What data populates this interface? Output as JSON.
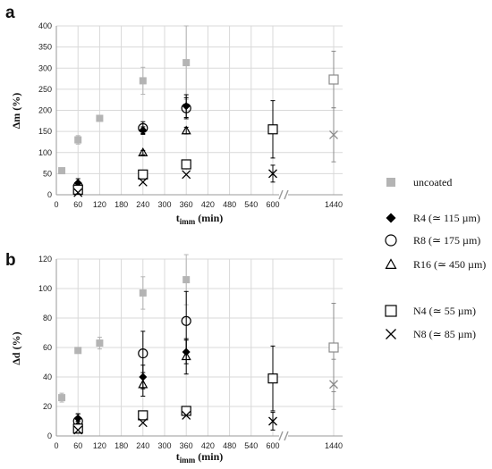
{
  "series_styles": {
    "uncoated": {
      "marker": "square-filled",
      "color": "#b4b4b4"
    },
    "R4": {
      "marker": "diamond-filled",
      "color": "#000000"
    },
    "R8": {
      "marker": "circle-open",
      "color": "#000000"
    },
    "R16": {
      "marker": "triangle-open",
      "color": "#000000"
    },
    "N4": {
      "marker": "square-open",
      "color": "#000000"
    },
    "N8": {
      "marker": "x",
      "color": "#000000"
    },
    "uncoated_1440": {
      "marker": "square-open",
      "color": "#8c8c8c"
    },
    "N8_1440": {
      "marker": "x",
      "color": "#8c8c8c"
    }
  },
  "legend": {
    "uncoated": "uncoated",
    "R4": "R4 (≃ 115 µm)",
    "R8": "R8 (≃ 175 µm)",
    "R16": "R16 (≃ 450 µm)",
    "N4": "N4 (≃ 55 µm)",
    "N8": "N8 (≃ 85 µm)"
  },
  "chart_data": [
    {
      "panel": "a",
      "type": "scatter",
      "ylabel": "Δm (%)",
      "xlabel_main": "t",
      "xlabel_sub": "imm",
      "xlabel_unit": "(min)",
      "ylim": [
        0,
        400
      ],
      "yticks": [
        "0",
        "50",
        "100",
        "150",
        "200",
        "250",
        "300",
        "350",
        "400"
      ],
      "xticks": [
        "0",
        "60",
        "120",
        "180",
        "240",
        "300",
        "360",
        "420",
        "480",
        "540",
        "600",
        "1440"
      ],
      "x_axis_break": "between 600 and 1440",
      "grid": true,
      "series": [
        {
          "name": "uncoated",
          "points": [
            {
              "x": 15,
              "y": 57,
              "err": 0
            },
            {
              "x": 60,
              "y": 130,
              "err": 10
            },
            {
              "x": 120,
              "y": 181,
              "err": 5
            },
            {
              "x": 240,
              "y": 270,
              "err": 32
            },
            {
              "x": 360,
              "y": 313,
              "err": 87
            },
            {
              "x": 1440,
              "y": 273,
              "err": 67
            }
          ]
        },
        {
          "name": "R4",
          "points": [
            {
              "x": 60,
              "y": 28,
              "err": 10
            },
            {
              "x": 240,
              "y": 153,
              "err": 8
            },
            {
              "x": 360,
              "y": 210,
              "err": 27
            }
          ]
        },
        {
          "name": "R8",
          "points": [
            {
              "x": 60,
              "y": 20,
              "err": 10
            },
            {
              "x": 240,
              "y": 158,
              "err": 15
            },
            {
              "x": 360,
              "y": 205,
              "err": 25
            }
          ]
        },
        {
          "name": "R16",
          "points": [
            {
              "x": 60,
              "y": 15,
              "err": 5
            },
            {
              "x": 240,
              "y": 100,
              "err": 5
            },
            {
              "x": 360,
              "y": 152,
              "err": 8
            }
          ]
        },
        {
          "name": "N4",
          "points": [
            {
              "x": 60,
              "y": 12,
              "err": 5
            },
            {
              "x": 240,
              "y": 48,
              "err": 5
            },
            {
              "x": 360,
              "y": 72,
              "err": 5
            },
            {
              "x": 600,
              "y": 155,
              "err": 68
            }
          ]
        },
        {
          "name": "N8",
          "points": [
            {
              "x": 60,
              "y": 5,
              "err": 0
            },
            {
              "x": 240,
              "y": 30,
              "err": 0
            },
            {
              "x": 360,
              "y": 48,
              "err": 0
            },
            {
              "x": 600,
              "y": 50,
              "err": 20
            },
            {
              "x": 1440,
              "y": 142,
              "err": 64
            }
          ]
        }
      ]
    },
    {
      "panel": "b",
      "type": "scatter",
      "ylabel": "Δd (%)",
      "xlabel_main": "t",
      "xlabel_sub": "imm",
      "xlabel_unit": "(min)",
      "ylim": [
        0,
        120
      ],
      "yticks": [
        "0",
        "20",
        "40",
        "60",
        "80",
        "100",
        "120"
      ],
      "xticks": [
        "0",
        "60",
        "120",
        "180",
        "240",
        "300",
        "360",
        "420",
        "480",
        "540",
        "600",
        "1440"
      ],
      "x_axis_break": "between 600 and 1440",
      "grid": true,
      "series": [
        {
          "name": "uncoated",
          "points": [
            {
              "x": 15,
              "y": 26,
              "err": 3
            },
            {
              "x": 60,
              "y": 58,
              "err": 0
            },
            {
              "x": 120,
              "y": 63,
              "err": 4
            },
            {
              "x": 240,
              "y": 97,
              "err": 11
            },
            {
              "x": 360,
              "y": 106,
              "err": 17
            },
            {
              "x": 1440,
              "y": 60,
              "err": 30
            }
          ]
        },
        {
          "name": "R4",
          "points": [
            {
              "x": 60,
              "y": 12,
              "err": 3
            },
            {
              "x": 240,
              "y": 40,
              "err": 8
            },
            {
              "x": 360,
              "y": 57,
              "err": 8
            }
          ]
        },
        {
          "name": "R8",
          "points": [
            {
              "x": 60,
              "y": 10,
              "err": 5
            },
            {
              "x": 240,
              "y": 56,
              "err": 15
            },
            {
              "x": 360,
              "y": 78,
              "err": 20
            }
          ]
        },
        {
          "name": "R16",
          "points": [
            {
              "x": 60,
              "y": 7,
              "err": 3
            },
            {
              "x": 240,
              "y": 35,
              "err": 8
            },
            {
              "x": 360,
              "y": 54,
              "err": 12
            }
          ]
        },
        {
          "name": "N4",
          "points": [
            {
              "x": 60,
              "y": 5,
              "err": 3
            },
            {
              "x": 240,
              "y": 14,
              "err": 0
            },
            {
              "x": 360,
              "y": 17,
              "err": 2
            },
            {
              "x": 600,
              "y": 39,
              "err": 22
            }
          ]
        },
        {
          "name": "N8",
          "points": [
            {
              "x": 60,
              "y": 4,
              "err": 0
            },
            {
              "x": 240,
              "y": 9,
              "err": 0
            },
            {
              "x": 360,
              "y": 14,
              "err": 0
            },
            {
              "x": 600,
              "y": 10,
              "err": 6
            },
            {
              "x": 1440,
              "y": 35,
              "err": 17
            }
          ]
        }
      ]
    }
  ]
}
